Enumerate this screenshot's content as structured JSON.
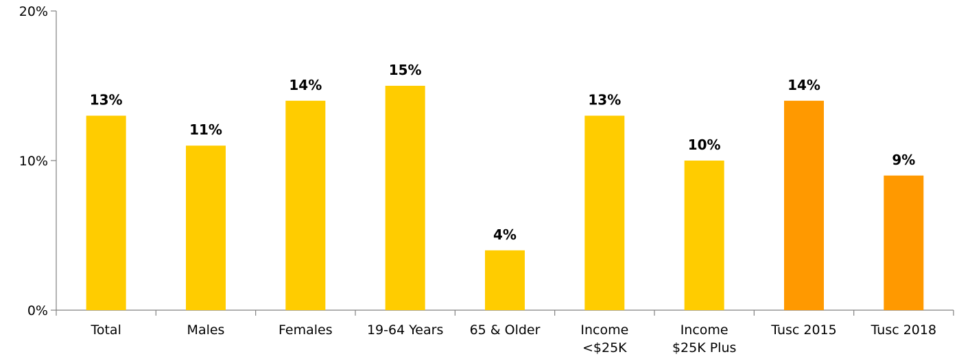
{
  "chart_data": {
    "type": "bar",
    "categories": [
      [
        "Total"
      ],
      [
        "Males"
      ],
      [
        "Females"
      ],
      [
        "19-64 Years"
      ],
      [
        "65 & Older"
      ],
      [
        "Income",
        "<$25K"
      ],
      [
        "Income",
        "$25K Plus"
      ],
      [
        "Tusc 2015"
      ],
      [
        "Tusc 2018"
      ]
    ],
    "values": [
      13,
      11,
      14,
      15,
      4,
      13,
      10,
      14,
      9
    ],
    "data_labels": [
      "13%",
      "11%",
      "14%",
      "15%",
      "4%",
      "13%",
      "10%",
      "14%",
      "9%"
    ],
    "bar_colors": [
      "#FFCC00",
      "#FFCC00",
      "#FFCC00",
      "#FFCC00",
      "#FFCC00",
      "#FFCC00",
      "#FFCC00",
      "#FF9900",
      "#FF9900"
    ],
    "yticks": [
      0,
      10,
      20
    ],
    "ytick_labels": [
      "0%",
      "10%",
      "20%"
    ],
    "ylim": [
      0,
      20
    ],
    "title": "",
    "xlabel": "",
    "ylabel": "",
    "grid": false,
    "legend": "none"
  }
}
